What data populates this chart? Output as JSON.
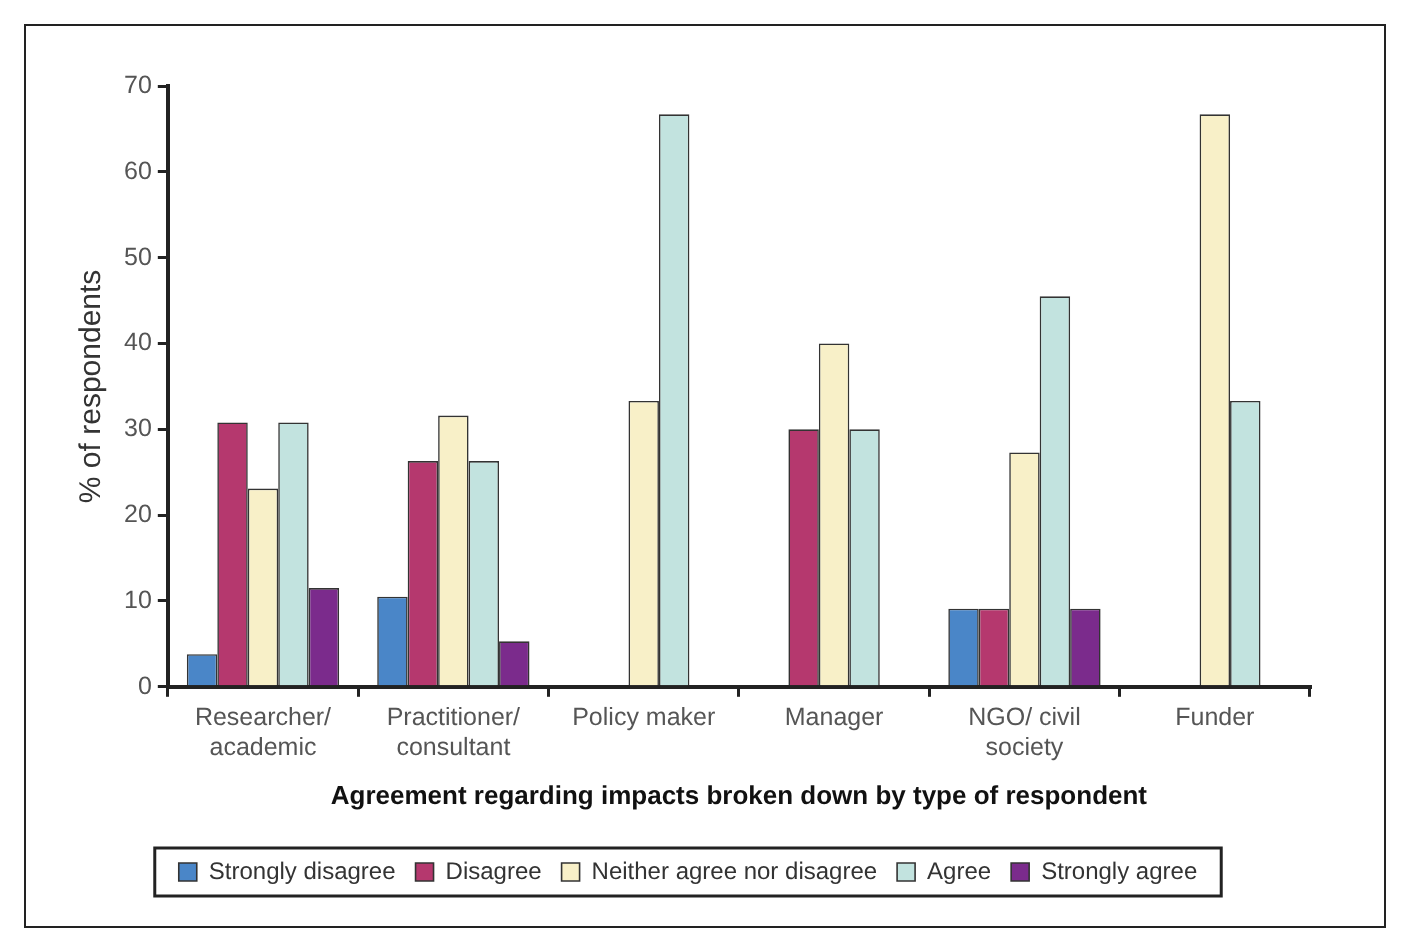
{
  "chart_data": {
    "type": "bar",
    "xlabel": "Agreement regarding impacts broken down by type of respondent",
    "ylabel": "% of respondents",
    "categories": [
      "Researcher/ academic",
      "Practitioner/ consultant",
      "Policy maker",
      "Manager",
      "NGO/ civil society",
      "Funder"
    ],
    "series": [
      {
        "name": "Strongly disagree",
        "color": "#4a86c8",
        "values": [
          3.8,
          10.5,
          0,
          0,
          9.1,
          0
        ]
      },
      {
        "name": "Disagree",
        "color": "#b5386e",
        "values": [
          30.8,
          26.3,
          0,
          30,
          9.1,
          0
        ]
      },
      {
        "name": "Neither agree nor disagree",
        "color": "#f8f0c8",
        "values": [
          23.1,
          31.6,
          33.3,
          40,
          27.3,
          66.7
        ]
      },
      {
        "name": "Agree",
        "color": "#c2e3df",
        "values": [
          30.8,
          26.3,
          66.7,
          30,
          45.5,
          33.3
        ]
      },
      {
        "name": "Strongly agree",
        "color": "#7b2b8c",
        "values": [
          11.5,
          5.3,
          0,
          0,
          9.1,
          0
        ]
      }
    ],
    "ylim": [
      0,
      70
    ],
    "yticks": [
      0,
      10,
      20,
      30,
      40,
      50,
      60,
      70
    ],
    "grid": false,
    "legend": "bottom"
  }
}
